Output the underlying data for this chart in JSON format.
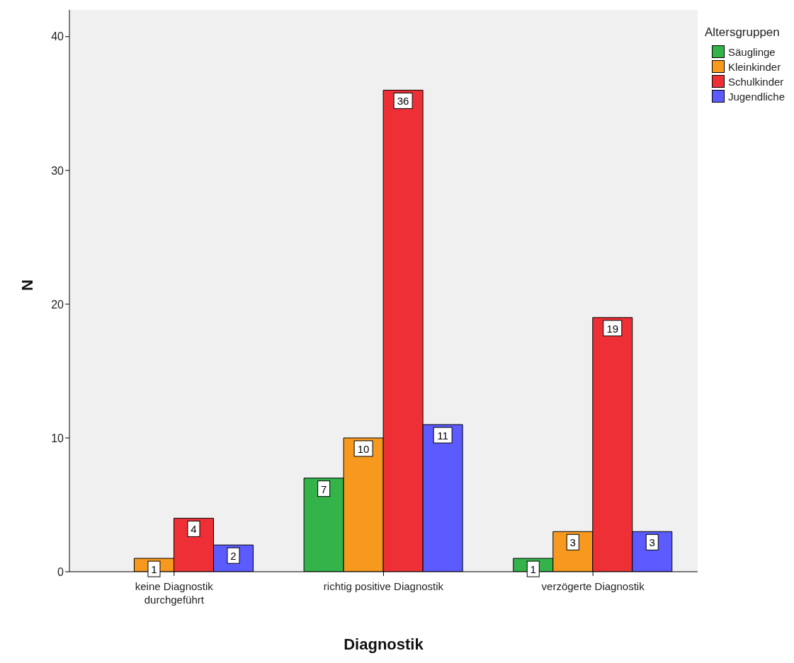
{
  "chart_data": {
    "type": "bar",
    "xlabel": "Diagnostik",
    "ylabel": "N",
    "legend_title": "Altersgruppen",
    "categories": [
      "keine Diagnostik durchgeführt",
      "richtig positive Diagnostik",
      "verzögerte Diagnostik"
    ],
    "series": [
      {
        "name": "Säuglinge",
        "color": "#33b34a",
        "values": [
          null,
          7,
          1
        ]
      },
      {
        "name": "Kleinkinder",
        "color": "#f7991f",
        "values": [
          1,
          10,
          3
        ]
      },
      {
        "name": "Schulkinder",
        "color": "#ee3036",
        "values": [
          4,
          36,
          19
        ]
      },
      {
        "name": "Jugendliche",
        "color": "#5b5bff",
        "values": [
          2,
          11,
          3
        ]
      }
    ],
    "ylim": [
      0,
      42
    ],
    "yticks": [
      0,
      10,
      20,
      30,
      40
    ],
    "grid": false,
    "legend": "top right",
    "data_labels": true
  }
}
